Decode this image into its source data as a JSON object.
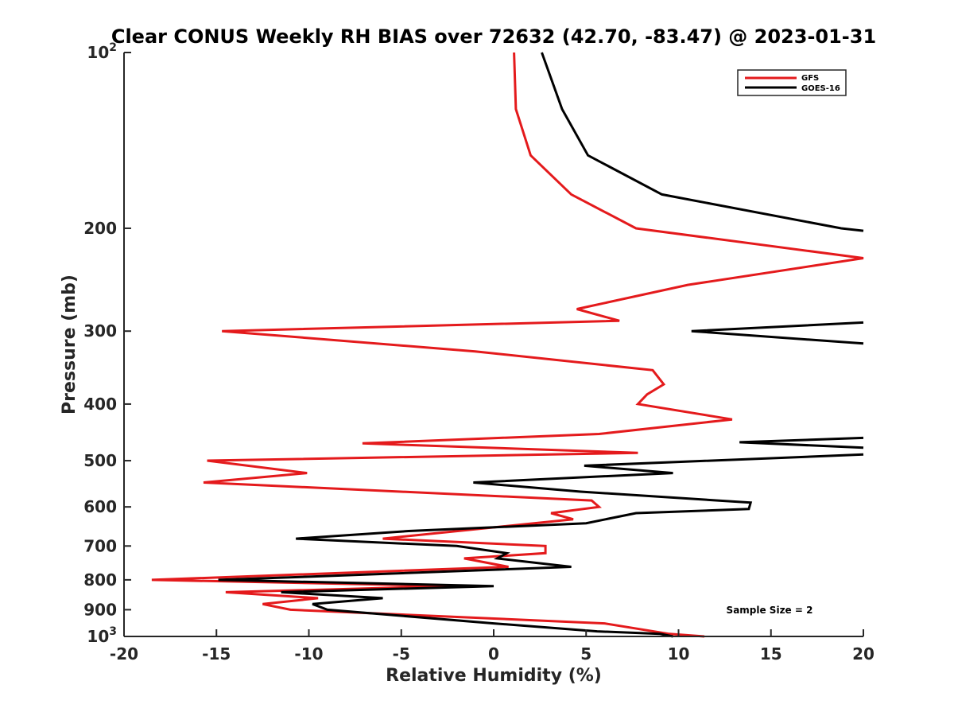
{
  "chart_data": {
    "type": "line",
    "title": "Clear CONUS Weekly RH BIAS over 72632 (42.70, -83.47) @ 2023-01-31",
    "xlabel": "Relative Humidity (%)",
    "ylabel": "Pressure (mb)",
    "xlim": [
      -20,
      20
    ],
    "ylim": [
      100,
      1000
    ],
    "y_scale": "log",
    "y_reversed": true,
    "grid": false,
    "legend_position": "top-right",
    "x_ticks": [
      "-20",
      "-15",
      "-10",
      "-5",
      "0",
      "5",
      "10",
      "15",
      "20"
    ],
    "y_ticks": [
      {
        "value": 100,
        "base": "10",
        "exp": "2"
      },
      {
        "value": 200,
        "label": "200"
      },
      {
        "value": 300,
        "label": "300"
      },
      {
        "value": 400,
        "label": "400"
      },
      {
        "value": 500,
        "label": "500"
      },
      {
        "value": 600,
        "label": "600"
      },
      {
        "value": 700,
        "label": "700"
      },
      {
        "value": 800,
        "label": "800"
      },
      {
        "value": 900,
        "label": "900"
      },
      {
        "value": 1000,
        "base": "10",
        "exp": "3"
      }
    ],
    "annotation": "Sample Size = 2",
    "series": [
      {
        "name": "GFS",
        "color": "#e41a1c",
        "points": [
          [
            1.1,
            100
          ],
          [
            1.2,
            125
          ],
          [
            2.0,
            150
          ],
          [
            4.2,
            175
          ],
          [
            7.7,
            200
          ],
          [
            20.0,
            225
          ],
          [
            10.5,
            250
          ],
          [
            4.5,
            275
          ],
          [
            6.8,
            288
          ],
          [
            -14.7,
            300
          ],
          [
            -1.0,
            325
          ],
          [
            8.6,
            350
          ],
          [
            9.2,
            370
          ],
          [
            8.3,
            385
          ],
          [
            7.8,
            400
          ],
          [
            12.9,
            425
          ],
          [
            5.7,
            450
          ],
          [
            -7.1,
            467
          ],
          [
            7.8,
            485
          ],
          [
            -15.5,
            500
          ],
          [
            -10.1,
            525
          ],
          [
            -15.7,
            545
          ],
          [
            5.3,
            585
          ],
          [
            5.7,
            600
          ],
          [
            3.1,
            615
          ],
          [
            4.3,
            630
          ],
          [
            -6.0,
            680
          ],
          [
            2.8,
            700
          ],
          [
            2.8,
            720
          ],
          [
            -1.6,
            735
          ],
          [
            0.8,
            760
          ],
          [
            -18.5,
            800
          ],
          [
            -2.0,
            820
          ],
          [
            -14.5,
            840
          ],
          [
            -9.5,
            860
          ],
          [
            -12.5,
            880
          ],
          [
            -11.0,
            900
          ],
          [
            6.0,
            950
          ],
          [
            9.5,
            990
          ],
          [
            11.4,
            1000
          ]
        ]
      },
      {
        "name": "GOES-16",
        "color": "#000000",
        "points": [
          [
            2.6,
            100
          ],
          [
            3.7,
            125
          ],
          [
            5.1,
            150
          ],
          [
            9.1,
            175
          ],
          [
            18.8,
            200
          ],
          [
            20.0,
            202
          ],
          null,
          [
            20.0,
            290
          ],
          [
            10.7,
            300
          ],
          [
            20.0,
            315
          ],
          null,
          [
            20.0,
            457
          ],
          [
            13.3,
            465
          ],
          [
            20.0,
            475
          ],
          null,
          [
            20.0,
            488
          ],
          [
            4.9,
            510
          ],
          [
            9.7,
            525
          ],
          [
            -1.1,
            545
          ],
          [
            4.7,
            565
          ],
          [
            13.9,
            590
          ],
          [
            13.8,
            605
          ],
          [
            7.7,
            615
          ],
          [
            5.0,
            640
          ],
          [
            -4.6,
            660
          ],
          [
            -10.7,
            680
          ],
          [
            -2.0,
            700
          ],
          [
            0.7,
            720
          ],
          [
            0.2,
            735
          ],
          [
            4.2,
            760
          ],
          [
            -10.0,
            790
          ],
          [
            -14.9,
            800
          ],
          [
            0.0,
            820
          ],
          [
            -11.5,
            840
          ],
          [
            -6.0,
            860
          ],
          [
            -9.8,
            880
          ],
          [
            -9.0,
            900
          ],
          [
            0.0,
            950
          ],
          [
            5.6,
            980
          ],
          [
            9.0,
            990
          ],
          [
            9.7,
            1000
          ]
        ]
      }
    ]
  }
}
